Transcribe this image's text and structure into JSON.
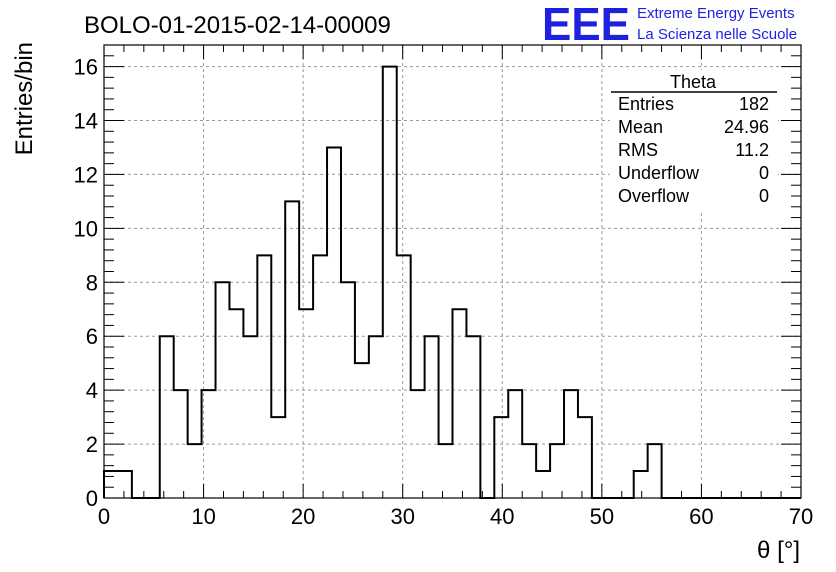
{
  "chart_data": {
    "type": "histogram",
    "title": "BOLO-01-2015-02-14-00009",
    "xlabel": "θ [°]",
    "ylabel": "Entries/bin",
    "xlim": [
      0,
      70
    ],
    "ylim": [
      0,
      16.8
    ],
    "x_ticks": [
      "0",
      "10",
      "20",
      "30",
      "40",
      "50",
      "60",
      "70"
    ],
    "y_ticks": [
      "0",
      "2",
      "4",
      "6",
      "8",
      "10",
      "12",
      "14",
      "16"
    ],
    "grid": true,
    "bin_width": 1.4,
    "bin_start": 0,
    "counts": [
      1,
      1,
      0,
      0,
      6,
      4,
      2,
      4,
      8,
      7,
      6,
      9,
      3,
      11,
      7,
      9,
      13,
      8,
      5,
      6,
      16,
      9,
      4,
      6,
      2,
      7,
      6,
      0,
      3,
      4,
      2,
      1,
      2,
      4,
      3,
      0,
      0,
      0,
      1,
      2,
      0,
      0,
      0,
      0,
      0,
      0,
      0,
      0,
      0,
      0
    ],
    "stats": {
      "name": "Theta",
      "rows": [
        {
          "label": "Entries",
          "value": "182"
        },
        {
          "label": "Mean",
          "value": "24.96"
        },
        {
          "label": "RMS",
          "value": "11.2"
        },
        {
          "label": "Underflow",
          "value": "0"
        },
        {
          "label": "Overflow",
          "value": "0"
        }
      ]
    }
  },
  "logo": {
    "mark": "EEE",
    "line1": "Extreme Energy Events",
    "line2": "La Scienza nelle Scuole",
    "color": "#1f1fe0"
  }
}
